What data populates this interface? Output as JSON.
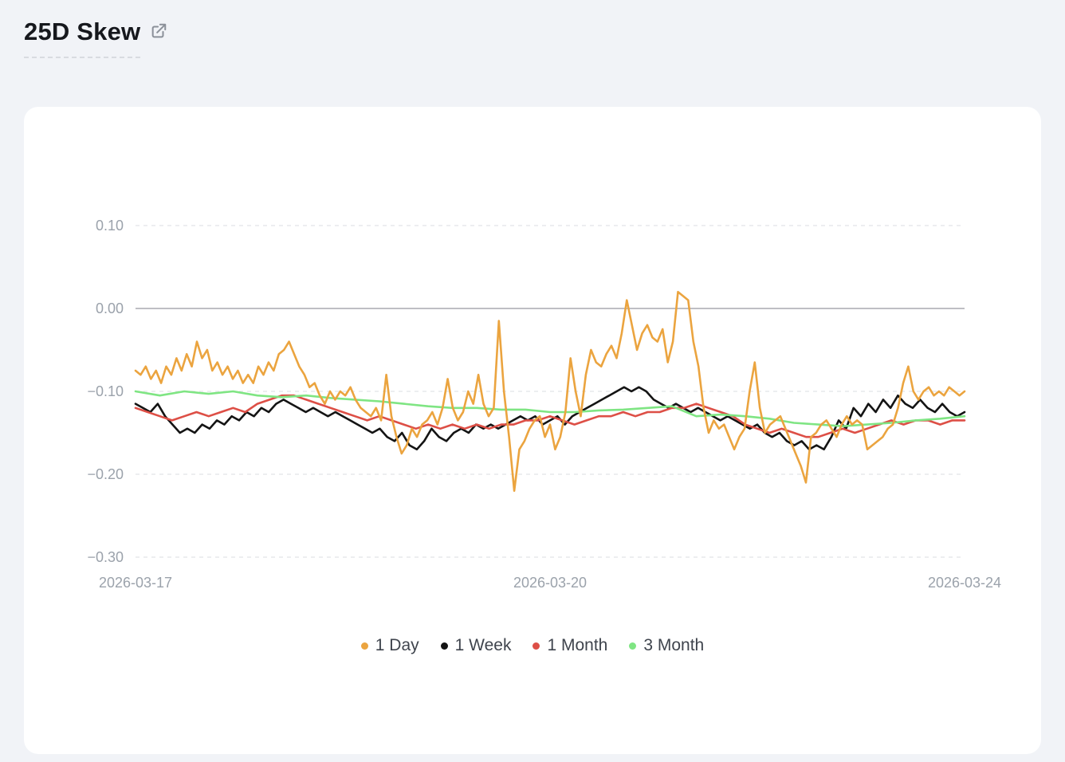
{
  "page": {
    "title": "25D Skew"
  },
  "chart_data": {
    "type": "line",
    "title": "25D Skew",
    "x_axis": {
      "ticks": [
        {
          "label": "2026-03-17",
          "pos": 0
        },
        {
          "label": "2026-03-20",
          "pos": 0.5
        },
        {
          "label": "2026-03-24",
          "pos": 1
        }
      ]
    },
    "y_axis": {
      "max": 0.1,
      "min": -0.3,
      "ticks": [
        0.1,
        0.0,
        -0.1,
        -0.2,
        -0.3
      ],
      "tick_labels": [
        "0.10",
        "0.00",
        "−0.10",
        "−0.20",
        "−0.30"
      ],
      "zero_line": 0,
      "grid": "dashed"
    },
    "legend_position": "bottom-center",
    "series": [
      {
        "name": "1 Day",
        "color": "#EBA43F",
        "values": [
          -0.075,
          -0.08,
          -0.07,
          -0.085,
          -0.075,
          -0.09,
          -0.07,
          -0.08,
          -0.06,
          -0.075,
          -0.055,
          -0.07,
          -0.04,
          -0.06,
          -0.05,
          -0.075,
          -0.065,
          -0.08,
          -0.07,
          -0.085,
          -0.075,
          -0.09,
          -0.08,
          -0.09,
          -0.07,
          -0.08,
          -0.065,
          -0.075,
          -0.055,
          -0.05,
          -0.04,
          -0.055,
          -0.07,
          -0.08,
          -0.095,
          -0.09,
          -0.105,
          -0.115,
          -0.1,
          -0.11,
          -0.1,
          -0.105,
          -0.095,
          -0.11,
          -0.12,
          -0.125,
          -0.13,
          -0.12,
          -0.135,
          -0.08,
          -0.13,
          -0.155,
          -0.175,
          -0.165,
          -0.145,
          -0.155,
          -0.14,
          -0.135,
          -0.125,
          -0.14,
          -0.12,
          -0.085,
          -0.12,
          -0.135,
          -0.125,
          -0.1,
          -0.115,
          -0.08,
          -0.115,
          -0.13,
          -0.12,
          -0.015,
          -0.1,
          -0.155,
          -0.22,
          -0.17,
          -0.16,
          -0.145,
          -0.135,
          -0.13,
          -0.155,
          -0.14,
          -0.17,
          -0.155,
          -0.125,
          -0.06,
          -0.1,
          -0.13,
          -0.08,
          -0.05,
          -0.065,
          -0.07,
          -0.055,
          -0.045,
          -0.06,
          -0.03,
          0.01,
          -0.02,
          -0.05,
          -0.03,
          -0.02,
          -0.035,
          -0.04,
          -0.025,
          -0.065,
          -0.04,
          0.02,
          0.015,
          0.01,
          -0.04,
          -0.07,
          -0.12,
          -0.15,
          -0.135,
          -0.145,
          -0.14,
          -0.155,
          -0.17,
          -0.155,
          -0.145,
          -0.1,
          -0.065,
          -0.12,
          -0.15,
          -0.14,
          -0.135,
          -0.13,
          -0.145,
          -0.16,
          -0.175,
          -0.19,
          -0.21,
          -0.155,
          -0.15,
          -0.14,
          -0.135,
          -0.145,
          -0.155,
          -0.14,
          -0.13,
          -0.14,
          -0.135,
          -0.14,
          -0.17,
          -0.165,
          -0.16,
          -0.155,
          -0.145,
          -0.14,
          -0.12,
          -0.09,
          -0.07,
          -0.1,
          -0.11,
          -0.1,
          -0.095,
          -0.105,
          -0.1,
          -0.105,
          -0.095,
          -0.1,
          -0.105,
          -0.1
        ]
      },
      {
        "name": "1 Week",
        "color": "#141414",
        "values": [
          -0.115,
          -0.12,
          -0.125,
          -0.115,
          -0.13,
          -0.14,
          -0.15,
          -0.145,
          -0.15,
          -0.14,
          -0.145,
          -0.135,
          -0.14,
          -0.13,
          -0.135,
          -0.125,
          -0.13,
          -0.12,
          -0.125,
          -0.115,
          -0.11,
          -0.115,
          -0.12,
          -0.125,
          -0.12,
          -0.125,
          -0.13,
          -0.125,
          -0.13,
          -0.135,
          -0.14,
          -0.145,
          -0.15,
          -0.145,
          -0.155,
          -0.16,
          -0.15,
          -0.165,
          -0.17,
          -0.16,
          -0.145,
          -0.155,
          -0.16,
          -0.15,
          -0.145,
          -0.15,
          -0.14,
          -0.145,
          -0.14,
          -0.145,
          -0.14,
          -0.135,
          -0.13,
          -0.135,
          -0.13,
          -0.14,
          -0.135,
          -0.13,
          -0.14,
          -0.13,
          -0.125,
          -0.12,
          -0.115,
          -0.11,
          -0.105,
          -0.1,
          -0.095,
          -0.1,
          -0.095,
          -0.1,
          -0.11,
          -0.115,
          -0.12,
          -0.115,
          -0.12,
          -0.125,
          -0.12,
          -0.125,
          -0.13,
          -0.135,
          -0.13,
          -0.135,
          -0.14,
          -0.145,
          -0.14,
          -0.15,
          -0.155,
          -0.15,
          -0.16,
          -0.165,
          -0.16,
          -0.17,
          -0.165,
          -0.17,
          -0.155,
          -0.135,
          -0.145,
          -0.12,
          -0.13,
          -0.115,
          -0.125,
          -0.11,
          -0.12,
          -0.105,
          -0.115,
          -0.12,
          -0.11,
          -0.12,
          -0.125,
          -0.115,
          -0.125,
          -0.13,
          -0.125
        ]
      },
      {
        "name": "1 Month",
        "color": "#DD4F46",
        "values": [
          -0.12,
          -0.125,
          -0.13,
          -0.135,
          -0.13,
          -0.125,
          -0.13,
          -0.125,
          -0.12,
          -0.125,
          -0.115,
          -0.11,
          -0.105,
          -0.105,
          -0.11,
          -0.115,
          -0.12,
          -0.125,
          -0.13,
          -0.135,
          -0.13,
          -0.135,
          -0.14,
          -0.145,
          -0.14,
          -0.145,
          -0.14,
          -0.145,
          -0.14,
          -0.145,
          -0.14,
          -0.14,
          -0.135,
          -0.135,
          -0.13,
          -0.135,
          -0.14,
          -0.135,
          -0.13,
          -0.13,
          -0.125,
          -0.13,
          -0.125,
          -0.125,
          -0.12,
          -0.12,
          -0.115,
          -0.12,
          -0.125,
          -0.13,
          -0.14,
          -0.145,
          -0.15,
          -0.145,
          -0.15,
          -0.155,
          -0.155,
          -0.15,
          -0.145,
          -0.15,
          -0.145,
          -0.14,
          -0.135,
          -0.14,
          -0.135,
          -0.135,
          -0.14,
          -0.135,
          -0.135
        ]
      },
      {
        "name": "3 Month",
        "color": "#7FE583",
        "values": [
          -0.1,
          -0.105,
          -0.1,
          -0.103,
          -0.1,
          -0.105,
          -0.107,
          -0.105,
          -0.108,
          -0.11,
          -0.112,
          -0.115,
          -0.118,
          -0.12,
          -0.12,
          -0.122,
          -0.122,
          -0.125,
          -0.125,
          -0.123,
          -0.122,
          -0.12,
          -0.118,
          -0.13,
          -0.128,
          -0.13,
          -0.133,
          -0.138,
          -0.14,
          -0.142,
          -0.14,
          -0.138,
          -0.135,
          -0.133,
          -0.13
        ]
      }
    ]
  }
}
